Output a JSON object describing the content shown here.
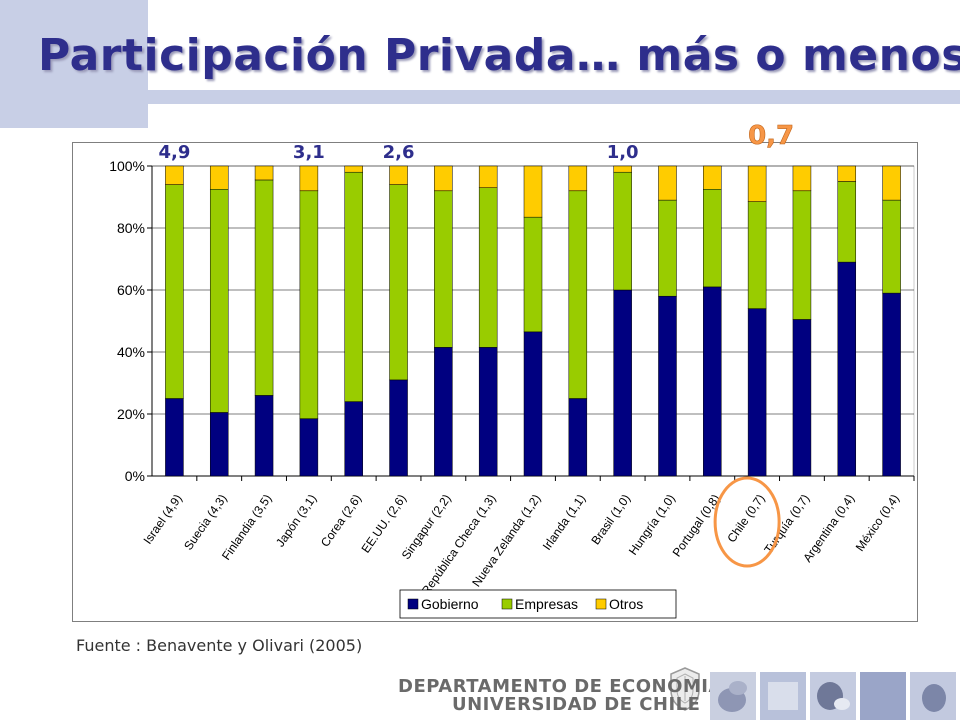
{
  "title": "Participación Privada… más o menos",
  "source": "Fuente : Benavente y Olivari (2005)",
  "footer": {
    "line1": "DEPARTAMENTO DE ECONOMIA",
    "line2": "UNIVERSIDAD DE CHILE"
  },
  "colors": {
    "gobierno": "#000080",
    "empresas": "#99cc00",
    "otros": "#ffcc00",
    "highlight": "#f79646",
    "title": "#2e2e8c",
    "callout": "#2e2e8c"
  },
  "callouts": [
    {
      "text": "4,9",
      "category_index": 0
    },
    {
      "text": "3,1",
      "category_index": 3
    },
    {
      "text": "2,6",
      "category_index": 5
    },
    {
      "text": "1,0",
      "category_index": 10
    },
    {
      "text": "0,7",
      "category_index": 13,
      "emphasis": true
    }
  ],
  "chart_data": {
    "type": "bar",
    "stacked": true,
    "categories": [
      "Israel (4,9)",
      "Suecia (4,3)",
      "Finlandia (3,5)",
      "Japón (3,1)",
      "Corea (2,6)",
      "EE.UU. (2,6)",
      "Singapur (2,2)",
      "República Checa (1,3)",
      "Nueva Zelanda (1,2)",
      "Irlanda (1,1)",
      "Brasil (1,0)",
      "Hungría (1,0)",
      "Portugal (0,8)",
      "Chile (0,7)",
      "Turquía (0,7)",
      "Argentina (0,4)",
      "México (0,4)"
    ],
    "series": [
      {
        "name": "Gobierno",
        "values": [
          25,
          20.5,
          26,
          18.5,
          24,
          31,
          41.5,
          41.5,
          46.5,
          25,
          60,
          58,
          61,
          54,
          50.5,
          69,
          59
        ]
      },
      {
        "name": "Empresas",
        "values": [
          69,
          72,
          69.5,
          73.5,
          74,
          63,
          50.5,
          51.5,
          37,
          67,
          38,
          31,
          31.5,
          34.5,
          41.5,
          26,
          30
        ]
      },
      {
        "name": "Otros",
        "values": [
          6,
          7.5,
          4.5,
          8,
          2,
          6,
          8,
          7,
          16.5,
          8,
          2,
          11,
          7.5,
          11.5,
          8,
          5,
          11
        ]
      }
    ],
    "yticks": [
      "0%",
      "20%",
      "40%",
      "60%",
      "80%",
      "100%"
    ],
    "ylim": [
      0,
      100
    ],
    "highlight_category": "Chile (0,7)",
    "legend_position": "bottom",
    "grid": true
  }
}
